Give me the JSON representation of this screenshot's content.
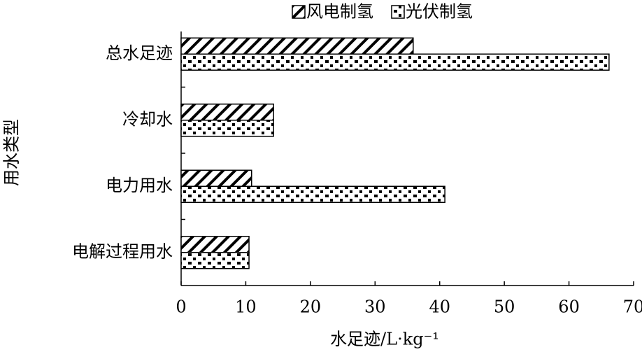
{
  "chart_data": {
    "type": "hbar",
    "categories": [
      "总水足迹",
      "冷却水",
      "电力用水",
      "电解过程用水"
    ],
    "series": [
      {
        "name": "风电制氢",
        "color": "#000000",
        "values": [
          35.9,
          14.3,
          10.9,
          10.5
        ]
      },
      {
        "name": "光伏制氢",
        "color": "#000000",
        "values": [
          66.2,
          14.3,
          40.8,
          10.5
        ]
      }
    ],
    "xlabel": "水足迹/L·kg⁻¹",
    "ylabel": "用水类型",
    "xlim": [
      0,
      70
    ],
    "xticks": [
      0,
      10,
      20,
      30,
      40,
      50,
      60,
      70
    ],
    "legend": "top"
  }
}
